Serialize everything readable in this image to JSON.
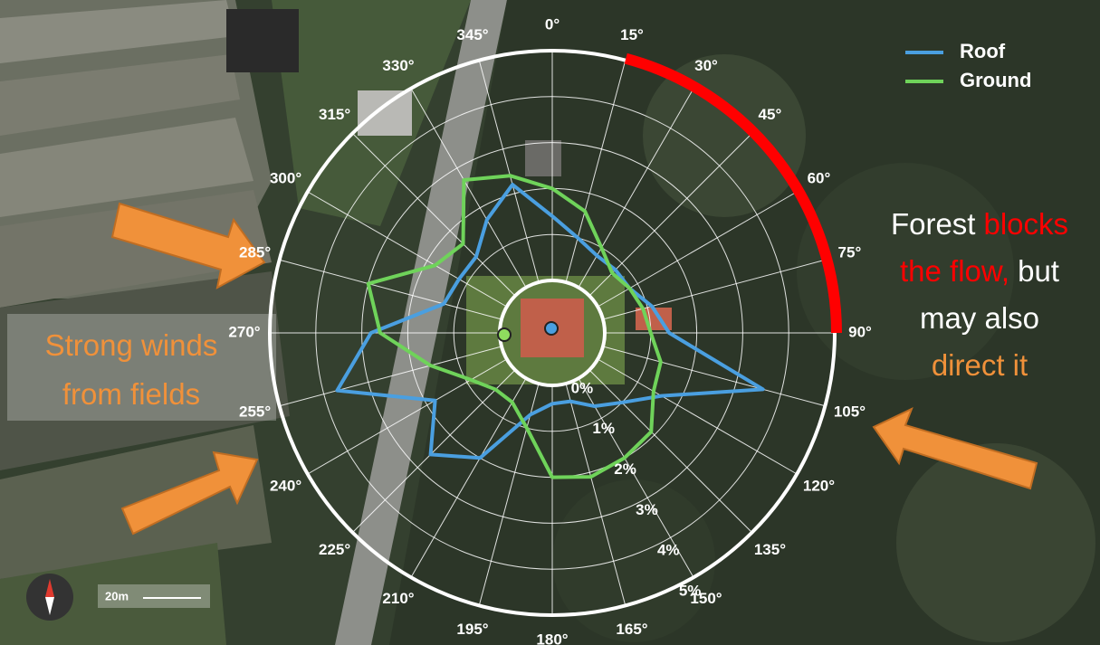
{
  "chart_data": {
    "type": "polar",
    "x": [
      0,
      15,
      30,
      45,
      60,
      75,
      90,
      105,
      120,
      135,
      150,
      165,
      180,
      195,
      210,
      225,
      240,
      255,
      270,
      285,
      300,
      315,
      330,
      345
    ],
    "xticks": [
      {
        "value": 0,
        "label": "0°"
      },
      {
        "value": 15,
        "label": "15°"
      },
      {
        "value": 30,
        "label": "30°"
      },
      {
        "value": 45,
        "label": "45°"
      },
      {
        "value": 60,
        "label": "60°"
      },
      {
        "value": 75,
        "label": "75°"
      },
      {
        "value": 90,
        "label": "90°"
      },
      {
        "value": 105,
        "label": "105°"
      },
      {
        "value": 120,
        "label": "120°"
      },
      {
        "value": 135,
        "label": "135°"
      },
      {
        "value": 150,
        "label": "150°"
      },
      {
        "value": 165,
        "label": "165°"
      },
      {
        "value": 180,
        "label": "180°"
      },
      {
        "value": 195,
        "label": "195°"
      },
      {
        "value": 210,
        "label": "210°"
      },
      {
        "value": 225,
        "label": "225°"
      },
      {
        "value": 240,
        "label": "240°"
      },
      {
        "value": 255,
        "label": "255°"
      },
      {
        "value": 270,
        "label": "270°"
      },
      {
        "value": 285,
        "label": "285°"
      },
      {
        "value": 300,
        "label": "300°"
      },
      {
        "value": 315,
        "label": "315°"
      },
      {
        "value": 330,
        "label": "330°"
      },
      {
        "value": 345,
        "label": "345°"
      }
    ],
    "ylim": [
      0,
      5
    ],
    "yticks": [
      {
        "value": 0,
        "label": "0%"
      },
      {
        "value": 1,
        "label": "1%"
      },
      {
        "value": 2,
        "label": "2%"
      },
      {
        "value": 3,
        "label": "3%"
      },
      {
        "value": 4,
        "label": "4%"
      },
      {
        "value": 5,
        "label": "5%"
      }
    ],
    "grid": true,
    "series": [
      {
        "name": "Roof",
        "color": "#4a9fe0",
        "values": [
          1.4,
          1.0,
          0.8,
          0.8,
          0.8,
          1.1,
          1.4,
          3.6,
          1.6,
          1.0,
          0.7,
          0.4,
          0.4,
          0.7,
          2.0,
          2.6,
          1.8,
          3.7,
          2.8,
          1.3,
          1.2,
          1.2,
          1.7,
          2.2
        ]
      },
      {
        "name": "Ground",
        "color": "#6fd35a",
        "values": [
          2.0,
          1.6,
          1.0,
          0.7,
          0.8,
          0.9,
          1.0,
          1.3,
          1.4,
          1.9,
          2.0,
          2.1,
          2.0,
          1.0,
          0.6,
          0.6,
          0.9,
          1.6,
          2.6,
          3.0,
          1.8,
          1.6,
          2.7,
          2.4
        ]
      }
    ],
    "legend": "top-right",
    "highlight_arc": {
      "from": 15,
      "to": 90,
      "color": "#ff0000"
    },
    "annotations": {
      "right": [
        [
          {
            "text": "Forest",
            "color": "#ffffff"
          },
          {
            "text": "blocks",
            "color": "#ff0000"
          }
        ],
        [
          {
            "text": "the flow,",
            "color": "#ff0000"
          },
          {
            "text": "but",
            "color": "#ffffff"
          }
        ],
        [
          {
            "text": "may also",
            "color": "#ffffff"
          }
        ],
        [
          {
            "text": "direct it",
            "color": "#f0913a"
          }
        ]
      ],
      "left": [
        [
          {
            "text": "Strong winds",
            "color": "#f0913a"
          }
        ],
        [
          {
            "text": "from fields",
            "color": "#f0913a"
          }
        ]
      ]
    },
    "scale_bar": "20m"
  }
}
